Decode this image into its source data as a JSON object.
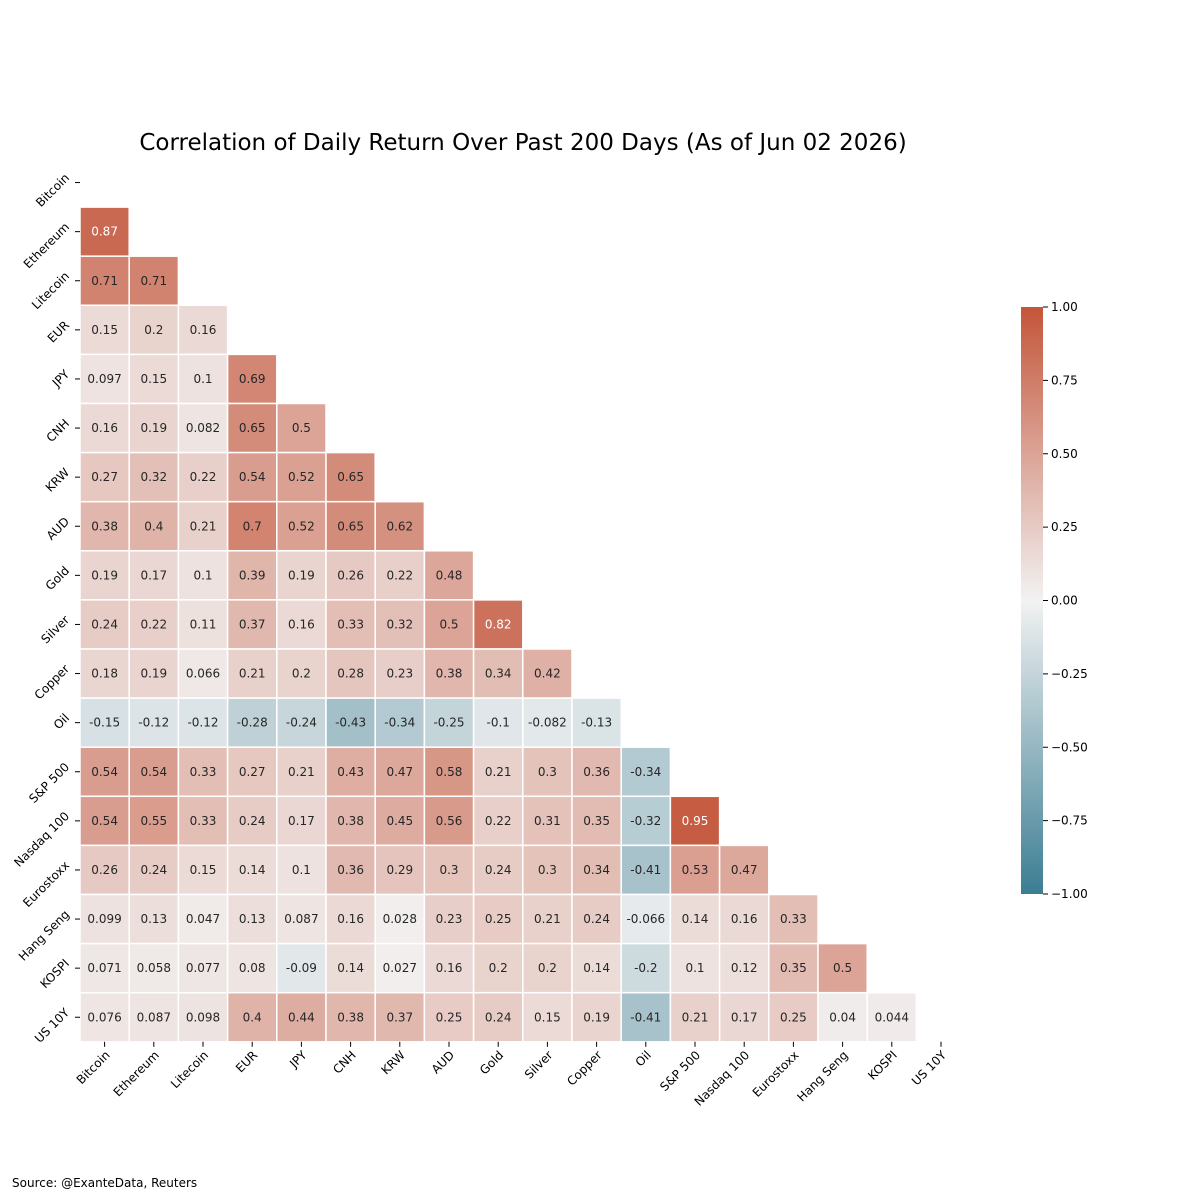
{
  "chart_data": {
    "type": "heatmap",
    "title": "Correlation of Daily Return Over Past 200 Days (As of Jun 02 2026)",
    "labels": [
      "Bitcoin",
      "Ethereum",
      "Litecoin",
      "EUR",
      "JPY",
      "CNH",
      "KRW",
      "AUD",
      "Gold",
      "Silver",
      "Copper",
      "Oil",
      "S&P 500",
      "Nasdaq 100",
      "Eurostoxx",
      "Hang Seng",
      "KOSPI",
      "US 10Y"
    ],
    "values": [
      [],
      [
        0.87
      ],
      [
        0.71,
        0.71
      ],
      [
        0.15,
        0.2,
        0.16
      ],
      [
        0.097,
        0.15,
        0.1,
        0.69
      ],
      [
        0.16,
        0.19,
        0.082,
        0.65,
        0.5
      ],
      [
        0.27,
        0.32,
        0.22,
        0.54,
        0.52,
        0.65
      ],
      [
        0.38,
        0.4,
        0.21,
        0.7,
        0.52,
        0.65,
        0.62
      ],
      [
        0.19,
        0.17,
        0.1,
        0.39,
        0.19,
        0.26,
        0.22,
        0.48
      ],
      [
        0.24,
        0.22,
        0.11,
        0.37,
        0.16,
        0.33,
        0.32,
        0.5,
        0.82
      ],
      [
        0.18,
        0.19,
        0.066,
        0.21,
        0.2,
        0.28,
        0.23,
        0.38,
        0.34,
        0.42
      ],
      [
        -0.15,
        -0.12,
        -0.12,
        -0.28,
        -0.24,
        -0.43,
        -0.34,
        -0.25,
        -0.1,
        -0.082,
        -0.13
      ],
      [
        0.54,
        0.54,
        0.33,
        0.27,
        0.21,
        0.43,
        0.47,
        0.58,
        0.21,
        0.3,
        0.36,
        -0.34
      ],
      [
        0.54,
        0.55,
        0.33,
        0.24,
        0.17,
        0.38,
        0.45,
        0.56,
        0.22,
        0.31,
        0.35,
        -0.32,
        0.95
      ],
      [
        0.26,
        0.24,
        0.15,
        0.14,
        0.1,
        0.36,
        0.29,
        0.3,
        0.24,
        0.3,
        0.34,
        -0.41,
        0.53,
        0.47
      ],
      [
        0.099,
        0.13,
        0.047,
        0.13,
        0.087,
        0.16,
        0.028,
        0.23,
        0.25,
        0.21,
        0.24,
        -0.066,
        0.14,
        0.16,
        0.33
      ],
      [
        0.071,
        0.058,
        0.077,
        0.08,
        -0.09,
        0.14,
        0.027,
        0.16,
        0.2,
        0.2,
        0.14,
        -0.2,
        0.1,
        0.12,
        0.35,
        0.5
      ],
      [
        0.076,
        0.087,
        0.098,
        0.4,
        0.44,
        0.38,
        0.37,
        0.25,
        0.24,
        0.15,
        0.19,
        -0.41,
        0.21,
        0.17,
        0.25,
        0.04,
        0.044
      ]
    ],
    "color_range": [
      -1,
      1
    ],
    "colorbar_ticks": [
      "1.00",
      "0.75",
      "0.50",
      "0.25",
      "0.00",
      "−0.25",
      "−0.50",
      "−0.75",
      "−1.00"
    ],
    "colormap": {
      "negative": "#3b7d93",
      "center": "#f2f2f2",
      "positive": "#c4553a"
    },
    "mask": "upper-triangle-including-diagonal"
  },
  "footer": {
    "source": "Source: @ExanteData, Reuters"
  }
}
